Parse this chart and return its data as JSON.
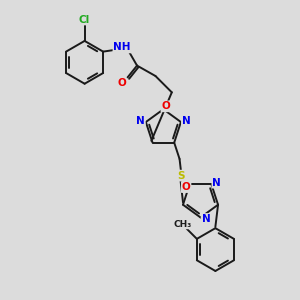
{
  "background_color": "#dcdcdc",
  "bond_color": "#1a1a1a",
  "atom_colors": {
    "C": "#1a1a1a",
    "N": "#0000ee",
    "O": "#ee0000",
    "S": "#bbbb00",
    "Cl": "#22aa22",
    "H": "#00aaaa",
    "NH": "#0000ee"
  },
  "figsize": [
    3.0,
    3.0
  ],
  "dpi": 100,
  "xlim": [
    0,
    10
  ],
  "ylim": [
    0,
    10
  ]
}
